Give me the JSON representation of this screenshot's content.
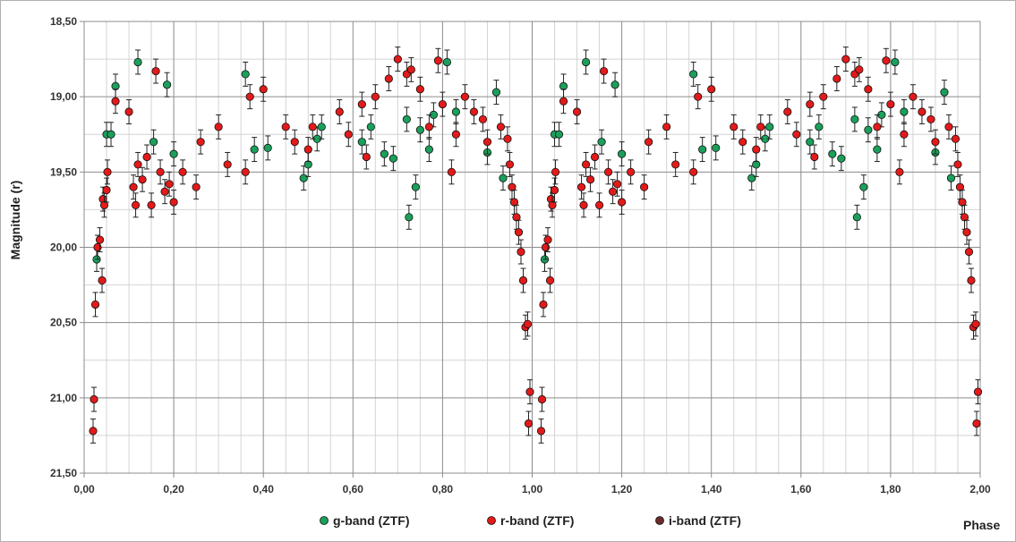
{
  "chart_data": {
    "type": "scatter",
    "title": "",
    "xlabel": "Phase",
    "ylabel": "Magnitude (r)",
    "xlim": [
      0,
      2
    ],
    "ylim": [
      18.5,
      21.5
    ],
    "y_inverted": true,
    "grid": true,
    "legend_position": "bottom",
    "x_ticks": [
      "0,00",
      "0,20",
      "0,40",
      "0,60",
      "0,80",
      "1,00",
      "1,20",
      "1,40",
      "1,60",
      "1,80",
      "2,00"
    ],
    "x_tick_values": [
      0,
      0.2,
      0.4,
      0.6,
      0.8,
      1.0,
      1.2,
      1.4,
      1.6,
      1.8,
      2.0
    ],
    "y_ticks": [
      "18,50",
      "19,00",
      "19,50",
      "20,00",
      "20,50",
      "21,00",
      "21,50"
    ],
    "y_tick_values": [
      18.5,
      19.0,
      19.5,
      20.0,
      20.5,
      21.0,
      21.5
    ],
    "series": [
      {
        "name": "g-band (ZTF)",
        "color": "#1aa05a",
        "error": 0.08,
        "points": [
          [
            0.028,
            20.08
          ],
          [
            0.05,
            19.25
          ],
          [
            0.06,
            19.25
          ],
          [
            0.07,
            18.93
          ],
          [
            0.12,
            18.77
          ],
          [
            0.155,
            19.3
          ],
          [
            0.185,
            18.92
          ],
          [
            0.2,
            19.38
          ],
          [
            0.36,
            18.85
          ],
          [
            0.38,
            19.35
          ],
          [
            0.41,
            19.34
          ],
          [
            0.49,
            19.54
          ],
          [
            0.5,
            19.45
          ],
          [
            0.52,
            19.28
          ],
          [
            0.53,
            19.2
          ],
          [
            0.62,
            19.3
          ],
          [
            0.64,
            19.2
          ],
          [
            0.67,
            19.38
          ],
          [
            0.69,
            19.41
          ],
          [
            0.72,
            19.15
          ],
          [
            0.725,
            19.8
          ],
          [
            0.74,
            19.6
          ],
          [
            0.75,
            19.22
          ],
          [
            0.77,
            19.35
          ],
          [
            0.78,
            19.12
          ],
          [
            0.81,
            18.77
          ],
          [
            0.83,
            19.1
          ],
          [
            0.9,
            19.37
          ],
          [
            0.92,
            18.97
          ],
          [
            0.935,
            19.54
          ]
        ]
      },
      {
        "name": "r-band (ZTF)",
        "color": "#e31a1a",
        "error": 0.08,
        "points": [
          [
            0.02,
            21.22
          ],
          [
            0.022,
            21.01
          ],
          [
            0.025,
            20.38
          ],
          [
            0.03,
            20.0
          ],
          [
            0.035,
            19.95
          ],
          [
            0.04,
            20.22
          ],
          [
            0.042,
            19.68
          ],
          [
            0.045,
            19.72
          ],
          [
            0.05,
            19.62
          ],
          [
            0.052,
            19.5
          ],
          [
            0.07,
            19.03
          ],
          [
            0.1,
            19.1
          ],
          [
            0.11,
            19.6
          ],
          [
            0.115,
            19.72
          ],
          [
            0.12,
            19.45
          ],
          [
            0.13,
            19.55
          ],
          [
            0.14,
            19.4
          ],
          [
            0.15,
            19.72
          ],
          [
            0.16,
            18.83
          ],
          [
            0.17,
            19.5
          ],
          [
            0.18,
            19.63
          ],
          [
            0.19,
            19.58
          ],
          [
            0.2,
            19.7
          ],
          [
            0.22,
            19.5
          ],
          [
            0.25,
            19.6
          ],
          [
            0.26,
            19.3
          ],
          [
            0.3,
            19.2
          ],
          [
            0.32,
            19.45
          ],
          [
            0.36,
            19.5
          ],
          [
            0.37,
            19.0
          ],
          [
            0.4,
            18.95
          ],
          [
            0.45,
            19.2
          ],
          [
            0.47,
            19.3
          ],
          [
            0.5,
            19.35
          ],
          [
            0.51,
            19.2
          ],
          [
            0.57,
            19.1
          ],
          [
            0.59,
            19.25
          ],
          [
            0.62,
            19.05
          ],
          [
            0.63,
            19.4
          ],
          [
            0.65,
            19.0
          ],
          [
            0.68,
            18.88
          ],
          [
            0.7,
            18.75
          ],
          [
            0.72,
            18.85
          ],
          [
            0.73,
            18.82
          ],
          [
            0.75,
            18.95
          ],
          [
            0.77,
            19.2
          ],
          [
            0.79,
            18.76
          ],
          [
            0.8,
            19.05
          ],
          [
            0.82,
            19.5
          ],
          [
            0.83,
            19.25
          ],
          [
            0.85,
            19.0
          ],
          [
            0.87,
            19.1
          ],
          [
            0.89,
            19.15
          ],
          [
            0.9,
            19.3
          ],
          [
            0.93,
            19.2
          ],
          [
            0.945,
            19.28
          ],
          [
            0.95,
            19.45
          ],
          [
            0.955,
            19.6
          ],
          [
            0.96,
            19.7
          ],
          [
            0.965,
            19.8
          ],
          [
            0.97,
            19.9
          ],
          [
            0.975,
            20.03
          ],
          [
            0.98,
            20.22
          ],
          [
            0.985,
            20.53
          ],
          [
            0.99,
            20.51
          ],
          [
            0.992,
            21.17
          ],
          [
            0.995,
            20.96
          ]
        ]
      },
      {
        "name": "i-band (ZTF)",
        "color": "#6b2b2b",
        "error": 0.08,
        "points": []
      }
    ],
    "cycle_repeat": true
  }
}
